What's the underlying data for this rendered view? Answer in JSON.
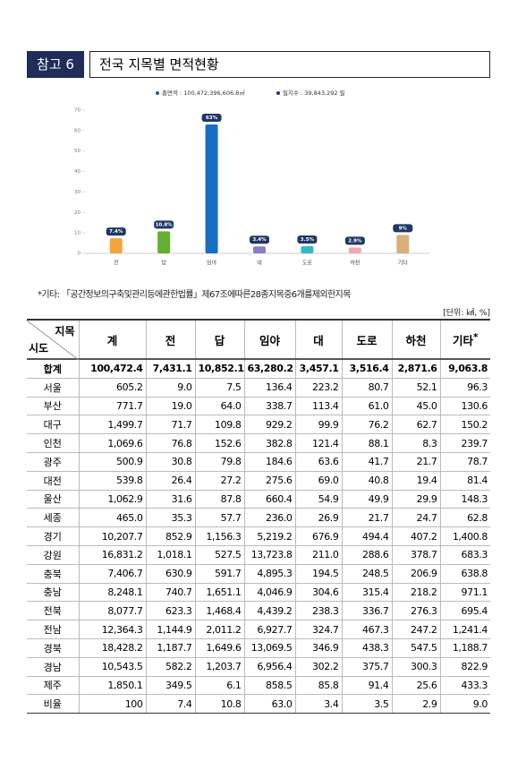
{
  "header": {
    "tag": "참고 6",
    "title": "전국 지목별 면적현황"
  },
  "chart_data": {
    "type": "bar",
    "legend": [
      {
        "text": "총면적 : 100,472,396,606.8㎡",
        "color": "#2f5597"
      },
      {
        "text": "필지수 : 39,843,292 필",
        "color": "#1f3864"
      }
    ],
    "categories": [
      "전",
      "답",
      "임야",
      "대",
      "도로",
      "하천",
      "기타"
    ],
    "values": [
      7.4,
      10.8,
      63,
      3.4,
      3.5,
      2.9,
      9
    ],
    "value_labels": [
      "7.4%",
      "10.8%",
      "63%",
      "3.4%",
      "3.5%",
      "2.9%",
      "9%"
    ],
    "colors": [
      "#f4a23c",
      "#62b030",
      "#1a6ec2",
      "#8e7cc3",
      "#35b8c8",
      "#f4a6b0",
      "#d9b07a"
    ],
    "label_color": "#1f3864",
    "ylim": [
      0,
      70
    ],
    "yticks": [
      0,
      10,
      20,
      30,
      40,
      50,
      60,
      70
    ]
  },
  "note": "*기타: 「공간정보의구축및관리등에관한법률」제67조에따른28종지목중6개를제외한지목",
  "unit": "[단위: ㎢, %]",
  "table": {
    "corner_top": "지목",
    "corner_bottom": "시도",
    "header": [
      "계",
      "전",
      "답",
      "임야",
      "대",
      "도로",
      "하천",
      "기타"
    ],
    "header_mark": "*",
    "rows": [
      [
        "합계",
        "100,472.4",
        "7,431.1",
        "10,852.1",
        "63,280.2",
        "3,457.1",
        "3,516.4",
        "2,871.6",
        "9,063.8"
      ],
      [
        "서울",
        "605.2",
        "9.0",
        "7.5",
        "136.4",
        "223.2",
        "80.7",
        "52.1",
        "96.3"
      ],
      [
        "부산",
        "771.7",
        "19.0",
        "64.0",
        "338.7",
        "113.4",
        "61.0",
        "45.0",
        "130.6"
      ],
      [
        "대구",
        "1,499.7",
        "71.7",
        "109.8",
        "929.2",
        "99.9",
        "76.2",
        "62.7",
        "150.2"
      ],
      [
        "인천",
        "1,069.6",
        "76.8",
        "152.6",
        "382.8",
        "121.4",
        "88.1",
        "8.3",
        "239.7"
      ],
      [
        "광주",
        "500.9",
        "30.8",
        "79.8",
        "184.6",
        "63.6",
        "41.7",
        "21.7",
        "78.7"
      ],
      [
        "대전",
        "539.8",
        "26.4",
        "27.2",
        "275.6",
        "69.0",
        "40.8",
        "19.4",
        "81.4"
      ],
      [
        "울산",
        "1,062.9",
        "31.6",
        "87.8",
        "660.4",
        "54.9",
        "49.9",
        "29.9",
        "148.3"
      ],
      [
        "세종",
        "465.0",
        "35.3",
        "57.7",
        "236.0",
        "26.9",
        "21.7",
        "24.7",
        "62.8"
      ],
      [
        "경기",
        "10,207.7",
        "852.9",
        "1,156.3",
        "5,219.2",
        "676.9",
        "494.4",
        "407.2",
        "1,400.8"
      ],
      [
        "강원",
        "16,831.2",
        "1,018.1",
        "527.5",
        "13,723.8",
        "211.0",
        "288.6",
        "378.7",
        "683.3"
      ],
      [
        "충북",
        "7,406.7",
        "630.9",
        "591.7",
        "4,895.3",
        "194.5",
        "248.5",
        "206.9",
        "638.8"
      ],
      [
        "충남",
        "8,248.1",
        "740.7",
        "1,651.1",
        "4,046.9",
        "304.6",
        "315.4",
        "218.2",
        "971.1"
      ],
      [
        "전북",
        "8,077.7",
        "623.3",
        "1,468.4",
        "4,439.2",
        "238.3",
        "336.7",
        "276.3",
        "695.4"
      ],
      [
        "전남",
        "12,364.3",
        "1,144.9",
        "2,011.2",
        "6,927.7",
        "324.7",
        "467.3",
        "247.2",
        "1,241.4"
      ],
      [
        "경북",
        "18,428.2",
        "1,187.7",
        "1,649.6",
        "13,069.5",
        "346.9",
        "438.3",
        "547.5",
        "1,188.7"
      ],
      [
        "경남",
        "10,543.5",
        "582.2",
        "1,203.7",
        "6,956.4",
        "302.2",
        "375.7",
        "300.3",
        "822.9"
      ],
      [
        "제주",
        "1,850.1",
        "349.5",
        "6.1",
        "858.5",
        "85.8",
        "91.4",
        "25.6",
        "433.3"
      ],
      [
        "비율",
        "100",
        "7.4",
        "10.8",
        "63.0",
        "3.4",
        "3.5",
        "2.9",
        "9.0"
      ]
    ]
  }
}
